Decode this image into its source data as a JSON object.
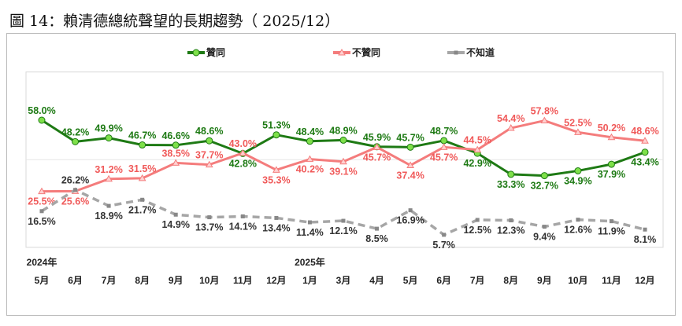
{
  "title": "圖 14：賴清德總統聲望的長期趨勢（ 2025/12）",
  "chart_data": {
    "type": "line",
    "title": "圖 14：賴清德總統聲望的長期趨勢（ 2025/12）",
    "xlabel": "",
    "ylabel": "",
    "year_labels": [
      {
        "index": 0,
        "text": "2024年"
      },
      {
        "index": 8,
        "text": "2025年"
      }
    ],
    "categories": [
      "5月",
      "6月",
      "7月",
      "8月",
      "9月",
      "10月",
      "11月",
      "12月",
      "1月",
      "3月",
      "4月",
      "5月",
      "6月",
      "7月",
      "8月",
      "9月",
      "10月",
      "11月",
      "12月"
    ],
    "ylim": [
      0,
      80
    ],
    "grid": true,
    "legend_position": "top",
    "series": [
      {
        "name": "贊同",
        "color": "#1e7a14",
        "marker": "circle",
        "marker_color": "#7ee04a",
        "dash": false,
        "values": [
          58.0,
          48.2,
          49.9,
          46.7,
          46.6,
          48.6,
          42.8,
          51.3,
          48.4,
          48.9,
          45.9,
          45.7,
          48.7,
          42.9,
          33.3,
          32.7,
          34.9,
          37.9,
          43.4
        ]
      },
      {
        "name": "不贊同",
        "color": "#f47c7c",
        "marker": "triangle",
        "marker_color": "#ffd0d0",
        "dash": false,
        "values": [
          25.5,
          25.6,
          31.2,
          31.5,
          38.5,
          37.7,
          43.0,
          35.3,
          40.2,
          39.1,
          45.7,
          37.4,
          45.7,
          44.5,
          54.4,
          57.8,
          52.5,
          50.2,
          48.6
        ]
      },
      {
        "name": "不知道",
        "color": "#a6a6a6",
        "marker": "square",
        "marker_color": "#888888",
        "dash": true,
        "values": [
          16.5,
          26.2,
          18.9,
          21.7,
          14.9,
          13.7,
          14.1,
          13.4,
          11.4,
          12.1,
          8.5,
          16.9,
          5.7,
          12.5,
          12.3,
          9.4,
          12.6,
          11.9,
          8.1
        ]
      }
    ],
    "label_colors": [
      "#1e7a14",
      "#f05a5a",
      "#333333"
    ]
  }
}
